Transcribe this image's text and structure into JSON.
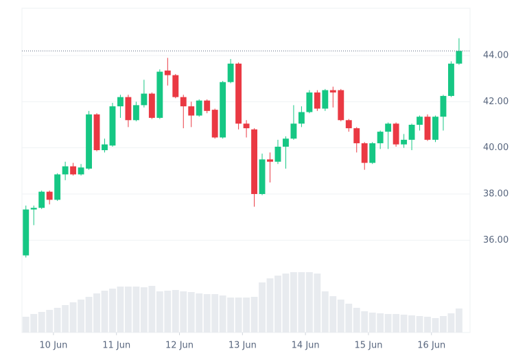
{
  "chart_data": {
    "type": "candlestick",
    "xticks": [
      {
        "value": 3.5,
        "label": "10 Jun"
      },
      {
        "value": 11.5,
        "label": "11 Jun"
      },
      {
        "value": 19.5,
        "label": "12 Jun"
      },
      {
        "value": 27.5,
        "label": "13 Jun"
      },
      {
        "value": 35.5,
        "label": "14 Jun"
      },
      {
        "value": 43.5,
        "label": "15 Jun"
      },
      {
        "value": 51.5,
        "label": "16 Jun"
      }
    ],
    "xlim": [
      -0.5,
      56.4
    ],
    "ylim": [
      32,
      46.05
    ],
    "yticks": [
      {
        "value": 36,
        "label": "36.00"
      },
      {
        "value": 38,
        "label": "38.00"
      },
      {
        "value": 40,
        "label": "40.00"
      },
      {
        "value": 42,
        "label": "42.00"
      },
      {
        "value": 44,
        "label": "44.00"
      }
    ],
    "grid": true,
    "up_color": "#16c784",
    "down_color": "#ea3943",
    "volume_color": "#e8ebef",
    "open": [
      35.34,
      37.33,
      37.4,
      38.1,
      37.75,
      38.85,
      39.2,
      38.85,
      39.1,
      41.45,
      39.9,
      40.1,
      41.8,
      42.2,
      41.2,
      41.85,
      42.35,
      41.3,
      43.35,
      43.15,
      42.2,
      41.8,
      41.4,
      42.05,
      41.65,
      40.45,
      42.85,
      43.65,
      41.05,
      40.8,
      38.0,
      39.5,
      39.4,
      40.05,
      40.4,
      41.05,
      41.55,
      42.4,
      41.7,
      42.5,
      42.5,
      41.2,
      40.85,
      40.2,
      39.35,
      40.2,
      40.7,
      41.05,
      40.15,
      40.35,
      41.0,
      41.35,
      40.35,
      41.35,
      42.25,
      43.65
    ],
    "high": [
      37.5,
      37.5,
      38.15,
      38.15,
      38.9,
      39.4,
      39.35,
      39.3,
      41.6,
      41.5,
      40.4,
      41.95,
      42.3,
      42.3,
      42.0,
      42.95,
      42.4,
      43.4,
      43.9,
      43.2,
      42.3,
      42.0,
      42.1,
      42.1,
      41.7,
      42.9,
      43.85,
      43.7,
      41.2,
      40.85,
      39.75,
      39.8,
      40.35,
      40.5,
      41.85,
      41.8,
      42.5,
      42.5,
      42.55,
      42.65,
      42.55,
      41.25,
      40.9,
      40.25,
      40.25,
      40.75,
      41.1,
      41.1,
      40.6,
      41.05,
      41.4,
      41.45,
      41.4,
      42.3,
      43.75,
      44.75
    ],
    "low": [
      35.25,
      36.65,
      37.35,
      37.55,
      37.7,
      38.6,
      38.8,
      38.8,
      39.05,
      39.85,
      39.8,
      40.05,
      41.3,
      40.9,
      41.15,
      41.75,
      41.25,
      41.25,
      42.7,
      42.15,
      40.85,
      40.9,
      41.35,
      41.5,
      40.4,
      40.4,
      42.8,
      40.8,
      40.45,
      37.45,
      37.95,
      38.5,
      39.3,
      39.1,
      40.35,
      40.9,
      41.5,
      41.6,
      41.6,
      41.75,
      41.15,
      40.7,
      39.8,
      39.05,
      39.3,
      39.95,
      39.95,
      40.05,
      40.0,
      39.9,
      40.75,
      40.3,
      40.25,
      40.75,
      42.2,
      43.6
    ],
    "close": [
      37.33,
      37.4,
      38.1,
      37.75,
      38.85,
      39.2,
      38.85,
      39.15,
      41.45,
      39.9,
      40.15,
      41.8,
      42.2,
      41.2,
      41.85,
      42.35,
      41.3,
      43.3,
      43.15,
      42.2,
      41.8,
      41.4,
      42.05,
      41.6,
      40.45,
      42.85,
      43.65,
      41.05,
      40.85,
      38.0,
      39.5,
      39.4,
      40.05,
      40.4,
      41.05,
      41.55,
      42.4,
      41.7,
      42.5,
      42.4,
      41.2,
      40.85,
      40.2,
      39.35,
      40.2,
      40.7,
      41.05,
      40.15,
      40.35,
      41.0,
      41.35,
      40.35,
      41.35,
      42.25,
      43.65,
      44.2
    ],
    "volume": [
      23,
      27,
      30,
      33,
      36,
      40,
      44,
      48,
      52,
      57,
      61,
      64,
      67,
      67,
      67,
      66,
      68,
      60,
      61,
      62,
      60,
      59,
      57,
      56,
      56,
      54,
      51,
      51,
      51,
      52,
      73,
      79,
      83,
      86,
      88,
      88,
      88,
      86,
      60,
      53,
      48,
      42,
      36,
      31,
      29,
      28,
      27,
      27,
      26,
      25,
      24,
      23,
      21,
      24,
      28,
      35
    ]
  }
}
